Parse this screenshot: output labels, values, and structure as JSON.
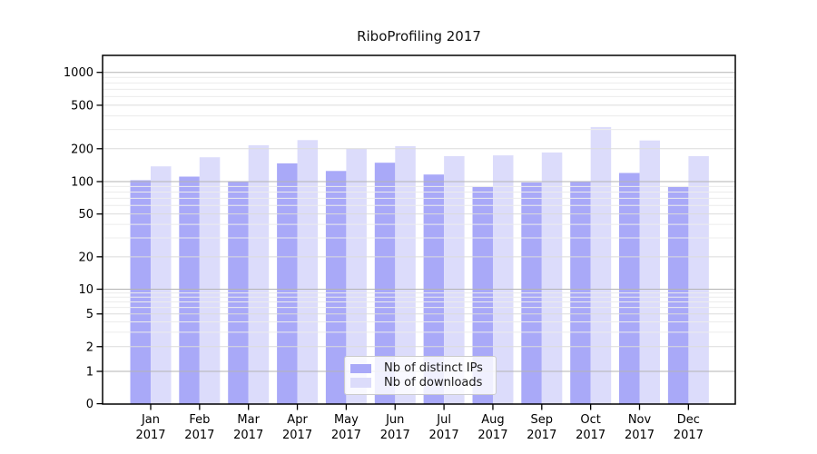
{
  "chart_data": {
    "type": "bar",
    "title": "RiboProfiling 2017",
    "categories": [
      "Jan 2017",
      "Feb 2017",
      "Mar 2017",
      "Apr 2017",
      "May 2017",
      "Jun 2017",
      "Jul 2017",
      "Aug 2017",
      "Sep 2017",
      "Oct 2017",
      "Nov 2017",
      "Dec 2017"
    ],
    "series": [
      {
        "name": "Nb of distinct IPs",
        "color": "#a9a9f8",
        "values": [
          103,
          111,
          100,
          147,
          125,
          149,
          116,
          89,
          98,
          100,
          120,
          89
        ]
      },
      {
        "name": "Nb of downloads",
        "color": "#dcdcfb",
        "values": [
          138,
          167,
          215,
          240,
          200,
          211,
          171,
          174,
          185,
          316,
          238,
          171
        ]
      }
    ],
    "xlabel": "",
    "ylabel": "",
    "yscale": "log-like (0 baseline, compressed first decade)",
    "yticks": [
      0,
      1,
      2,
      5,
      10,
      20,
      50,
      100,
      200,
      500,
      1000
    ],
    "ylim": [
      0,
      1400
    ],
    "grid": true,
    "legend_position": "lower center",
    "style": {
      "grid_major_color": "#b3b3b3",
      "grid_mid_color": "#dbdbdb",
      "grid_minor_color": "#ececec",
      "spine_color": "#000000",
      "text_color": "#000000",
      "background": "#ffffff"
    }
  }
}
